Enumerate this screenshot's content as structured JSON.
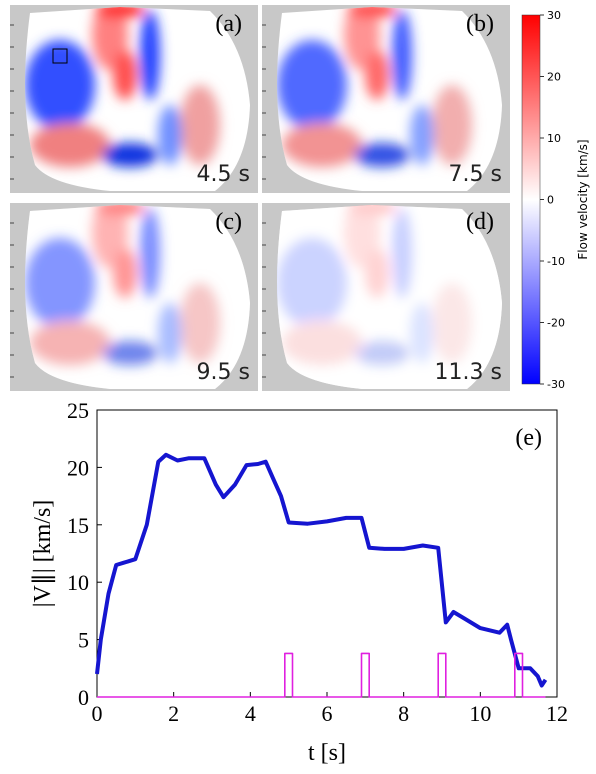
{
  "chart_data": [
    {
      "type": "heatmap",
      "panels": [
        {
          "label": "(a)",
          "time": "4.5 s"
        },
        {
          "label": "(b)",
          "time": "7.5 s"
        },
        {
          "label": "(c)",
          "time": "9.5 s"
        },
        {
          "label": "(d)",
          "time": "11.3 s"
        }
      ],
      "colorbar": {
        "label": "Flow velocity [km/s]",
        "lim": [
          -30,
          30
        ],
        "ticks": [
          30,
          20,
          10,
          0,
          -10,
          -20,
          -30
        ],
        "colors": [
          "#0000ff",
          "#ffffff",
          "#ff0000"
        ]
      }
    },
    {
      "type": "line",
      "label": "(e)",
      "x_label": "t [s]",
      "y_label": "|V∥| [km/s]",
      "xlim": [
        0,
        12
      ],
      "xticks": [
        0,
        2,
        4,
        6,
        8,
        10,
        12
      ],
      "ylim": [
        0,
        25
      ],
      "yticks": [
        0,
        5,
        10,
        15,
        20,
        25
      ],
      "series": [
        {
          "color": "#1515d0",
          "x": [
            0,
            0.1,
            0.3,
            0.5,
            0.7,
            1.0,
            1.3,
            1.6,
            1.8,
            2.1,
            2.4,
            2.8,
            3.1,
            3.3,
            3.6,
            3.9,
            4.2,
            4.4,
            4.6,
            4.8,
            5.0,
            5.5,
            6.0,
            6.5,
            6.9,
            7.1,
            7.5,
            8.0,
            8.5,
            8.9,
            9.1,
            9.3,
            9.6,
            10.0,
            10.5,
            10.7,
            10.8,
            11.0,
            11.3,
            11.5,
            11.6,
            11.7
          ],
          "values": [
            2,
            5,
            9,
            11.5,
            11.7,
            12,
            15,
            20.5,
            21.1,
            20.6,
            20.8,
            20.8,
            18.5,
            17.4,
            18.5,
            20.2,
            20.3,
            20.5,
            19,
            17.5,
            15.2,
            15.1,
            15.3,
            15.6,
            15.6,
            13,
            12.9,
            12.9,
            13.2,
            13,
            6.5,
            7.4,
            6.8,
            6.0,
            5.6,
            6.3,
            5,
            2.5,
            2.5,
            1.8,
            1.0,
            1.5
          ]
        },
        {
          "color": "#e020e0",
          "x": [
            0,
            4.9,
            4.9,
            5.1,
            5.1,
            6.9,
            6.9,
            7.1,
            7.1,
            8.9,
            8.9,
            9.1,
            9.1,
            10.9,
            10.9,
            11.1,
            11.1,
            11.7
          ],
          "values": [
            0,
            0,
            3.8,
            3.8,
            0,
            0,
            3.8,
            3.8,
            0,
            0,
            3.8,
            3.8,
            0,
            0,
            3.8,
            3.8,
            0,
            0
          ]
        }
      ]
    }
  ]
}
